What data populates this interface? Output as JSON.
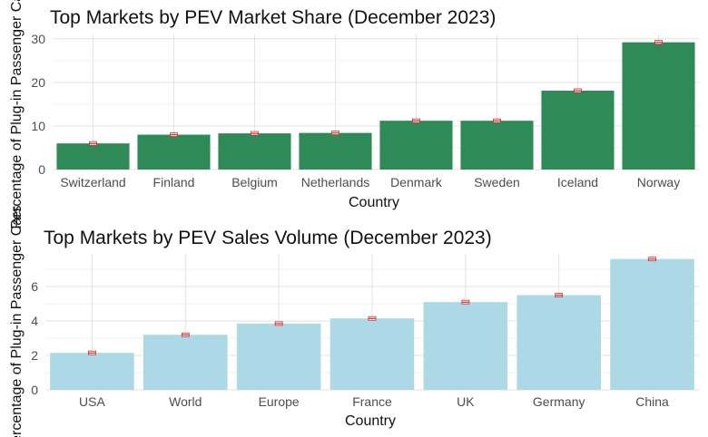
{
  "chart_data": [
    {
      "type": "bar",
      "title": "Top Markets by PEV Market Share (December 2023)",
      "xlabel": "Country",
      "ylabel": "Percentage of Plug-in Passenger Cars",
      "categories": [
        "Switzerland",
        "Finland",
        "Belgium",
        "Netherlands",
        "Denmark",
        "Sweden",
        "Iceland",
        "Norway"
      ],
      "values": [
        6.0,
        8.0,
        8.3,
        8.4,
        11.2,
        11.2,
        18.1,
        29.2
      ],
      "ylim": [
        0,
        31
      ],
      "yticks": [
        0,
        10,
        20,
        30
      ],
      "bar_color": "#2e8b57",
      "grid": true
    },
    {
      "type": "bar",
      "title": "Top Markets by PEV Sales Volume (December 2023)",
      "xlabel": "Country",
      "ylabel": "Percentage of Plug-in Passenger Cars",
      "categories": [
        "USA",
        "World",
        "Europe",
        "France",
        "UK",
        "Germany",
        "China"
      ],
      "values": [
        2.15,
        3.2,
        3.85,
        4.15,
        5.1,
        5.5,
        7.6
      ],
      "ylim": [
        0,
        7.9
      ],
      "yticks": [
        0,
        2,
        4,
        6
      ],
      "bar_color": "#add8e6",
      "grid": true
    }
  ]
}
